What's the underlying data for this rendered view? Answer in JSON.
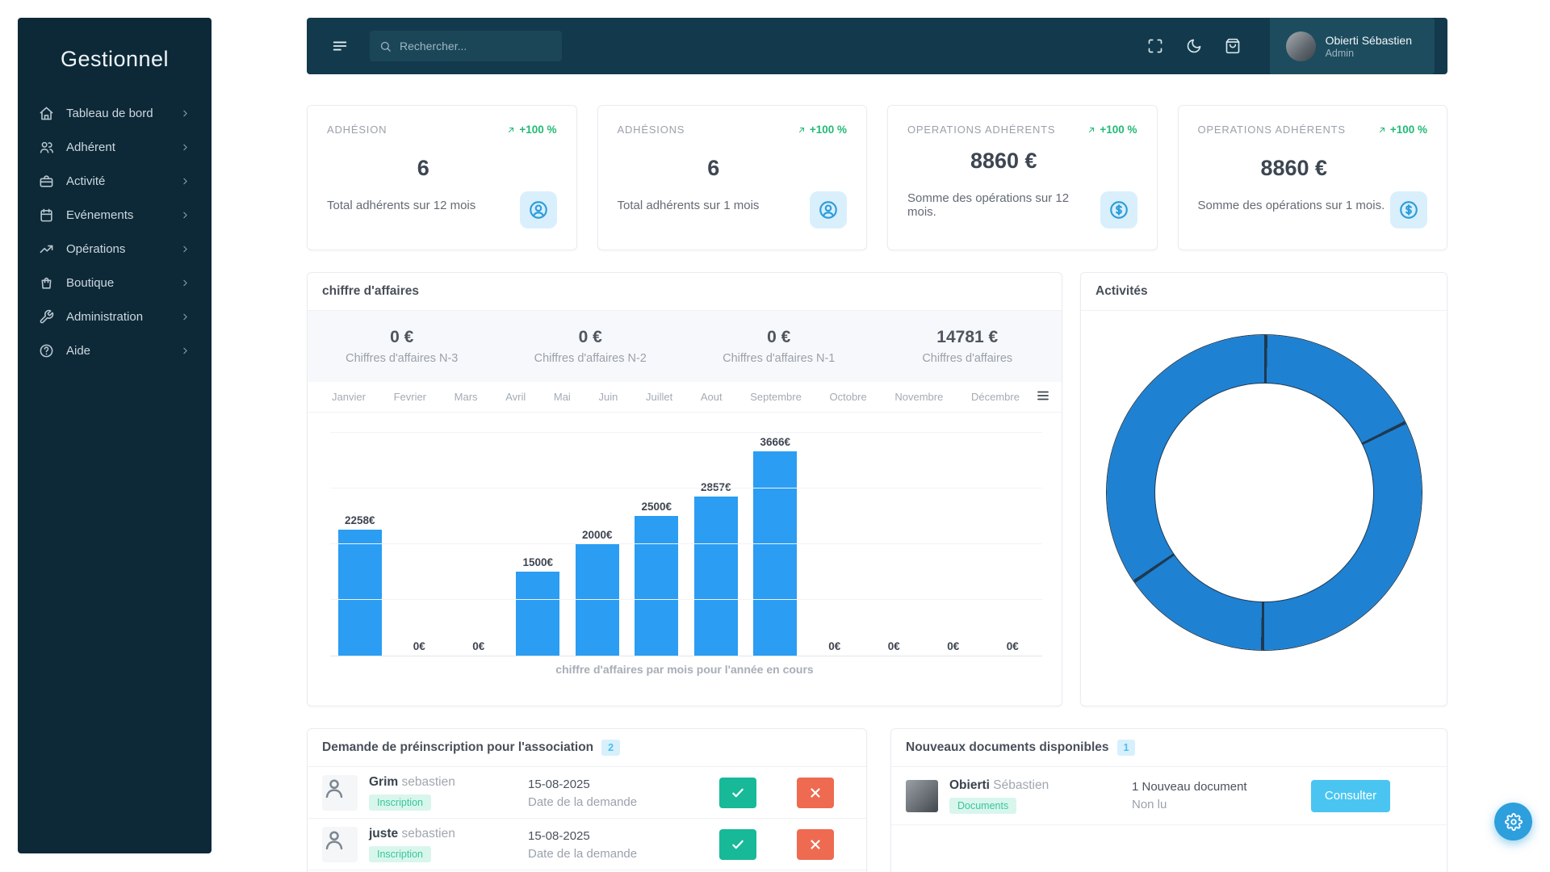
{
  "app": {
    "title": "Gestionnel"
  },
  "sidebar": {
    "items": [
      {
        "label": "Tableau de bord",
        "icon": "home"
      },
      {
        "label": "Adhérent",
        "icon": "users"
      },
      {
        "label": "Activité",
        "icon": "briefcase"
      },
      {
        "label": "Evénements",
        "icon": "calendar"
      },
      {
        "label": "Opérations",
        "icon": "trending-up"
      },
      {
        "label": "Boutique",
        "icon": "shopping-bag"
      },
      {
        "label": "Administration",
        "icon": "wrench"
      },
      {
        "label": "Aide",
        "icon": "help-circle"
      }
    ]
  },
  "header": {
    "search_placeholder": "Rechercher...",
    "user": {
      "name": "Obierti Sébastien",
      "role": "Admin"
    }
  },
  "stat_cards": [
    {
      "title": "ADHÉSION",
      "trend": "+100 %",
      "value": "6",
      "subtitle": "Total adhérents sur 12 mois",
      "icon": "user-circle"
    },
    {
      "title": "ADHÉSIONS",
      "trend": "+100 %",
      "value": "6",
      "subtitle": "Total adhérents sur 1 mois",
      "icon": "user-circle"
    },
    {
      "title": "OPERATIONS ADHÉRENTS",
      "trend": "+100 %",
      "value": "8860 €",
      "subtitle": "Somme des opérations sur 12 mois.",
      "icon": "dollar-circle"
    },
    {
      "title": "OPERATIONS ADHÉRENTS",
      "trend": "+100 %",
      "value": "8860 €",
      "subtitle": "Somme des opérations sur 1 mois.",
      "icon": "dollar-circle"
    }
  ],
  "revenue_panel": {
    "title": "chiffre d'affaires",
    "summary": [
      {
        "value": "0 €",
        "label": "Chiffres d'affaires N-3"
      },
      {
        "value": "0 €",
        "label": "Chiffres d'affaires N-2"
      },
      {
        "value": "0 €",
        "label": "Chiffres d'affaires N-1"
      },
      {
        "value": "14781 €",
        "label": "Chiffres d'affaires"
      }
    ],
    "caption": "chiffre d'affaires par mois pour l'année en cours"
  },
  "activities_panel": {
    "title": "Activités"
  },
  "chart_data": [
    {
      "type": "bar",
      "title": "chiffre d'affaires par mois pour l'année en cours",
      "categories": [
        "Janvier",
        "Fevrier",
        "Mars",
        "Avril",
        "Mai",
        "Juin",
        "Juillet",
        "Aout",
        "Septembre",
        "Octobre",
        "Novembre",
        "Décembre"
      ],
      "values": [
        2258,
        0,
        0,
        1500,
        2000,
        2500,
        2857,
        3666,
        0,
        0,
        0,
        0
      ],
      "unit": "€",
      "ylim": [
        0,
        4000
      ],
      "gridline_step": 1000,
      "grid": true,
      "bar_color": "#2b9df3",
      "label_suffix": "€",
      "total_year": 14781
    },
    {
      "type": "donut",
      "title": "Activités",
      "color": "#1f81d2",
      "separator_color": "#1d3a52",
      "segment_boundaries_deg": [
        0,
        63,
        180,
        235
      ],
      "segments_pct": [
        17.5,
        32.5,
        15.3,
        34.7
      ]
    }
  ],
  "preinscription_panel": {
    "title": "Demande de préinscription pour l'association",
    "count": "2",
    "date_label": "Date de la demande",
    "rows": [
      {
        "first": "Grim",
        "last": "sebastien",
        "badge": "Inscription",
        "date": "15-08-2025"
      },
      {
        "first": "juste",
        "last": "sebastien",
        "badge": "Inscription",
        "date": "15-08-2025"
      }
    ]
  },
  "documents_panel": {
    "title": "Nouveaux documents disponibles",
    "count": "1",
    "rows": [
      {
        "first": "Obierti",
        "last": "Sébastien",
        "badge": "Documents",
        "info": "1 Nouveau document",
        "status": "Non lu",
        "action": "Consulter"
      }
    ]
  },
  "colors": {
    "sidebar_bg": "#0d2938",
    "header_bg": "#123a4c",
    "profile_bg": "#1d4c5f",
    "accent_bar_blue": "#2b9df3",
    "donut_blue": "#1f81d2",
    "trend_green": "#21ba75",
    "approve_green": "#17b998",
    "reject_red": "#ee6a50",
    "consult_blue": "#4ac5f2",
    "chip_bg": "#d9effc",
    "chip_icon": "#2d9ddb",
    "tag_green_bg": "#d9f6ec",
    "tag_green_text": "#38c69c",
    "count_badge_bg": "#d7f0fc",
    "count_badge_text": "#4cc0ee",
    "fab_blue": "#2d9fdd"
  }
}
